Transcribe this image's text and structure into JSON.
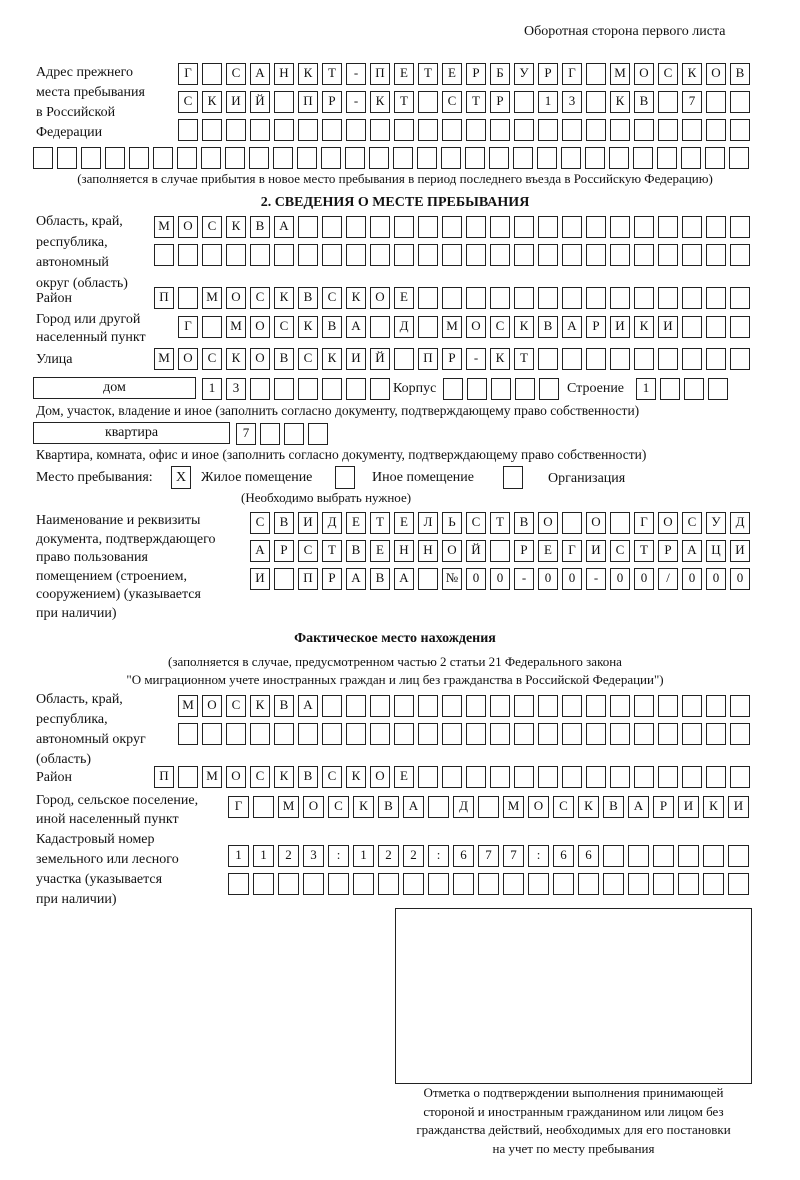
{
  "header": {
    "page_side": "Оборотная сторона первого листа"
  },
  "previous_address": {
    "label": [
      "Адрес прежнего",
      "места пребывания",
      "в Российской",
      "Федерации"
    ],
    "rows": [
      [
        "Г",
        "",
        "С",
        "А",
        "Н",
        "К",
        "Т",
        "-",
        "П",
        "Е",
        "Т",
        "Е",
        "Р",
        "Б",
        "У",
        "Р",
        "Г",
        "",
        "М",
        "О",
        "С",
        "К",
        "О",
        "В"
      ],
      [
        "С",
        "К",
        "И",
        "Й",
        "",
        "П",
        "Р",
        "-",
        "К",
        "Т",
        "",
        "С",
        "Т",
        "Р",
        "",
        "1",
        "3",
        "",
        "К",
        "В",
        "",
        "7",
        "",
        ""
      ],
      [
        "",
        "",
        "",
        "",
        "",
        "",
        "",
        "",
        "",
        "",
        "",
        "",
        "",
        "",
        "",
        "",
        "",
        "",
        "",
        "",
        "",
        "",
        "",
        ""
      ],
      [
        "",
        "",
        "",
        "",
        "",
        "",
        "",
        "",
        "",
        "",
        "",
        "",
        "",
        "",
        "",
        "",
        "",
        "",
        "",
        "",
        "",
        "",
        "",
        "",
        "",
        "",
        "",
        "",
        "",
        ""
      ]
    ],
    "note": "(заполняется в случае прибытия в новое место пребывания в период последнего въезда в Российскую Федерацию)"
  },
  "section2": {
    "title": "2. СВЕДЕНИЯ О МЕСТЕ ПРЕБЫВАНИЯ",
    "region_label": [
      "Область, край,",
      "республика,",
      "автономный",
      "округ (область)"
    ],
    "region_rows": [
      [
        "М",
        "О",
        "С",
        "К",
        "В",
        "А",
        "",
        "",
        "",
        "",
        "",
        "",
        "",
        "",
        "",
        "",
        "",
        "",
        "",
        "",
        "",
        "",
        "",
        "",
        ""
      ],
      [
        "",
        "",
        "",
        "",
        "",
        "",
        "",
        "",
        "",
        "",
        "",
        "",
        "",
        "",
        "",
        "",
        "",
        "",
        "",
        "",
        "",
        "",
        "",
        "",
        ""
      ]
    ],
    "district_label": "Район",
    "district": [
      "П",
      "",
      "М",
      "О",
      "С",
      "К",
      "В",
      "С",
      "К",
      "О",
      "Е",
      "",
      "",
      "",
      "",
      "",
      "",
      "",
      "",
      "",
      "",
      "",
      "",
      "",
      ""
    ],
    "city_label": [
      "Город или другой",
      "населенный пункт"
    ],
    "city": [
      "Г",
      "",
      "М",
      "О",
      "С",
      "К",
      "В",
      "А",
      "",
      "Д",
      "",
      "М",
      "О",
      "С",
      "К",
      "В",
      "А",
      "Р",
      "И",
      "К",
      "И",
      "",
      "",
      ""
    ],
    "street_label": "Улица",
    "street": [
      "М",
      "О",
      "С",
      "К",
      "О",
      "В",
      "С",
      "К",
      "И",
      "Й",
      "",
      "П",
      "Р",
      "-",
      "К",
      "Т",
      "",
      "",
      "",
      "",
      "",
      "",
      "",
      "",
      ""
    ],
    "house_type": "дом",
    "house": [
      "1",
      "3",
      "",
      "",
      "",
      "",
      "",
      ""
    ],
    "korpus_label": "Корпус",
    "korpus": [
      "",
      "",
      "",
      "",
      ""
    ],
    "building_label": "Строение",
    "building": [
      "1",
      "",
      "",
      ""
    ],
    "house_note": "Дом, участок, владение и иное (заполнить согласно документу, подтверждающему право собственности)",
    "apt_type": "квартира",
    "apt": [
      "7",
      "",
      "",
      ""
    ],
    "apt_note": "Квартира, комната, офис и иное (заполнить согласно документу, подтверждающему право собственности)",
    "stay_place_label": "Место пребывания:",
    "stay_options": [
      {
        "label": "Жилое помещение",
        "checked": true,
        "mark": "X"
      },
      {
        "label": "Иное помещение",
        "checked": false,
        "mark": ""
      },
      {
        "label": "Организация",
        "checked": false,
        "mark": ""
      }
    ],
    "stay_note": "(Необходимо выбрать нужное)",
    "doc_label": [
      "Наименование и реквизиты",
      "документа, подтверждающего",
      "право пользования",
      "помещением (строением,",
      "сооружением) (указывается",
      "при наличии)"
    ],
    "doc_rows": [
      [
        "С",
        "В",
        "И",
        "Д",
        "Е",
        "Т",
        "Е",
        "Л",
        "Ь",
        "С",
        "Т",
        "В",
        "О",
        "",
        "О",
        "",
        "Г",
        "О",
        "С",
        "У",
        "Д"
      ],
      [
        "А",
        "Р",
        "С",
        "Т",
        "В",
        "Е",
        "Н",
        "Н",
        "О",
        "Й",
        "",
        "Р",
        "Е",
        "Г",
        "И",
        "С",
        "Т",
        "Р",
        "А",
        "Ц",
        "И"
      ],
      [
        "И",
        "",
        "П",
        "Р",
        "А",
        "В",
        "А",
        "",
        "№",
        "0",
        "0",
        "-",
        "0",
        "0",
        "-",
        "0",
        "0",
        "/",
        "0",
        "0",
        "0"
      ]
    ]
  },
  "actual": {
    "title": "Фактическое место нахождения",
    "note": [
      "(заполняется в случае, предусмотренном частью 2 статьи 21 Федерального закона",
      "\"О миграционном учете иностранных граждан и лиц без гражданства в Российской Федерации\")"
    ],
    "region_label": [
      "Область, край,",
      "республика,",
      "автономный округ",
      "(область)"
    ],
    "region_rows": [
      [
        "М",
        "О",
        "С",
        "К",
        "В",
        "А",
        "",
        "",
        "",
        "",
        "",
        "",
        "",
        "",
        "",
        "",
        "",
        "",
        "",
        "",
        "",
        "",
        "",
        ""
      ],
      [
        "",
        "",
        "",
        "",
        "",
        "",
        "",
        "",
        "",
        "",
        "",
        "",
        "",
        "",
        "",
        "",
        "",
        "",
        "",
        "",
        "",
        "",
        "",
        ""
      ]
    ],
    "district_label": "Район",
    "district": [
      "П",
      "",
      "М",
      "О",
      "С",
      "К",
      "В",
      "С",
      "К",
      "О",
      "Е",
      "",
      "",
      "",
      "",
      "",
      "",
      "",
      "",
      "",
      "",
      "",
      "",
      "",
      ""
    ],
    "city_label": [
      "Город, сельское поселение,",
      "иной населенный пункт"
    ],
    "city": [
      "Г",
      "",
      "М",
      "О",
      "С",
      "К",
      "В",
      "А",
      "",
      "Д",
      "",
      "М",
      "О",
      "С",
      "К",
      "В",
      "А",
      "Р",
      "И",
      "К",
      "И"
    ],
    "cadastral_label": [
      "Кадастровый номер",
      "земельного или лесного",
      "участка (указывается",
      "при наличии)"
    ],
    "cadastral_rows": [
      [
        "1",
        "1",
        "2",
        "3",
        ":",
        "1",
        "2",
        "2",
        ":",
        "6",
        "7",
        "7",
        ":",
        "6",
        "6",
        "",
        "",
        "",
        "",
        "",
        ""
      ],
      [
        "",
        "",
        "",
        "",
        "",
        "",
        "",
        "",
        "",
        "",
        "",
        "",
        "",
        "",
        "",
        "",
        "",
        "",
        "",
        "",
        ""
      ]
    ]
  },
  "confirmation": {
    "caption": [
      "Отметка о подтверждении выполнения принимающей",
      "стороной и иностранным гражданином или лицом без",
      "гражданства действий, необходимых для его постановки",
      "на учет по месту пребывания"
    ]
  }
}
